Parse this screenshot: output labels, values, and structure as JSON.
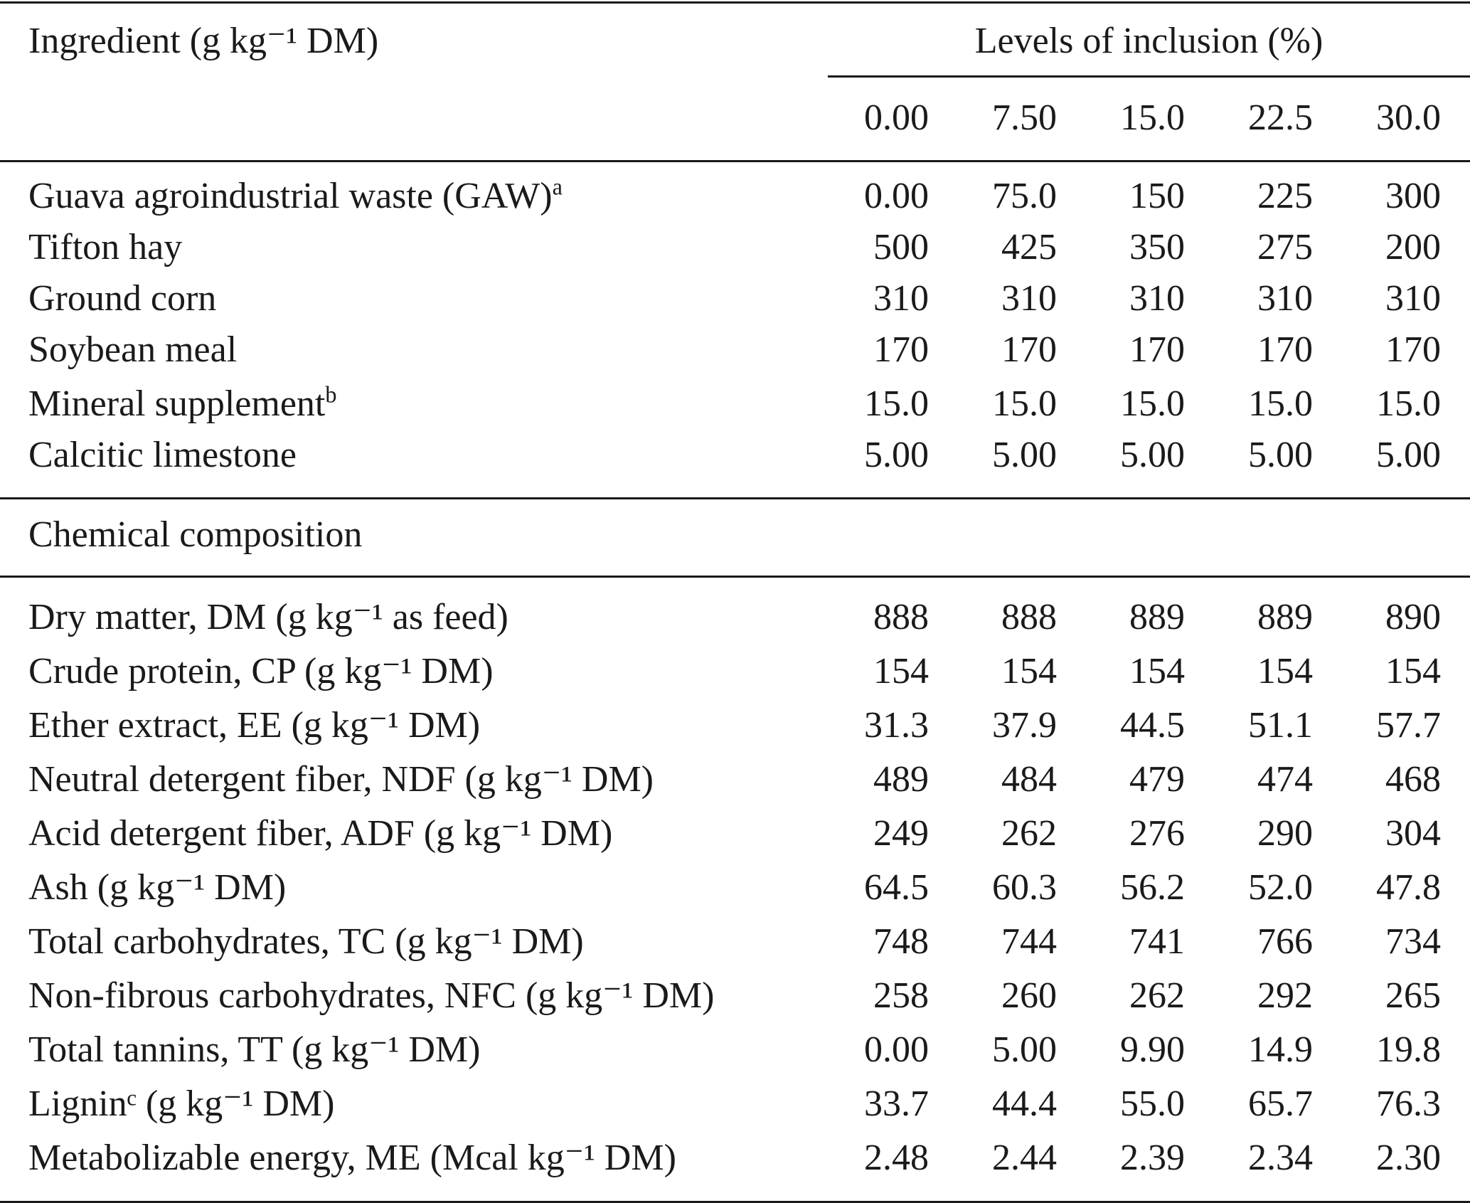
{
  "header": {
    "ingredient_label": "Ingredient (g kg⁻¹ DM)",
    "levels_label": "Levels of inclusion (%)",
    "levels": [
      "0.00",
      "7.50",
      "15.0",
      "22.5",
      "30.0"
    ]
  },
  "ingredients": [
    {
      "label": "Guava agroindustrial waste (GAW)",
      "sup": "a",
      "values": [
        "0.00",
        "75.0",
        "150",
        "225",
        "300"
      ]
    },
    {
      "label": "Tifton hay",
      "sup": "",
      "values": [
        "500",
        "425",
        "350",
        "275",
        "200"
      ]
    },
    {
      "label": "Ground corn",
      "sup": "",
      "values": [
        "310",
        "310",
        "310",
        "310",
        "310"
      ]
    },
    {
      "label": "Soybean meal",
      "sup": "",
      "values": [
        "170",
        "170",
        "170",
        "170",
        "170"
      ]
    },
    {
      "label": "Mineral supplement",
      "sup": "b",
      "values": [
        "15.0",
        "15.0",
        "15.0",
        "15.0",
        "15.0"
      ]
    },
    {
      "label": "Calcitic limestone",
      "sup": "",
      "values": [
        "5.00",
        "5.00",
        "5.00",
        "5.00",
        "5.00"
      ]
    }
  ],
  "section_title": "Chemical composition",
  "composition": [
    {
      "label": "Dry matter, DM (g kg⁻¹ as feed)",
      "values": [
        "888",
        "888",
        "889",
        "889",
        "890"
      ]
    },
    {
      "label": "Crude protein, CP (g kg⁻¹ DM)",
      "values": [
        "154",
        "154",
        "154",
        "154",
        "154"
      ]
    },
    {
      "label": "Ether extract, EE (g kg⁻¹ DM)",
      "values": [
        "31.3",
        "37.9",
        "44.5",
        "51.1",
        "57.7"
      ]
    },
    {
      "label": "Neutral detergent fiber, NDF (g kg⁻¹ DM)",
      "values": [
        "489",
        "484",
        "479",
        "474",
        "468"
      ]
    },
    {
      "label": "Acid detergent fiber, ADF (g kg⁻¹ DM)",
      "values": [
        "249",
        "262",
        "276",
        "290",
        "304"
      ]
    },
    {
      "label": "Ash (g kg⁻¹ DM)",
      "values": [
        "64.5",
        "60.3",
        "56.2",
        "52.0",
        "47.8"
      ]
    },
    {
      "label": "Total carbohydrates, TC (g kg⁻¹ DM)",
      "values": [
        "748",
        "744",
        "741",
        "766",
        "734"
      ]
    },
    {
      "label": "Non-fibrous carbohydrates, NFC (g kg⁻¹ DM)",
      "values": [
        "258",
        "260",
        "262",
        "292",
        "265"
      ]
    },
    {
      "label": "Total tannins, TT (g kg⁻¹ DM)",
      "values": [
        "0.00",
        "5.00",
        "9.90",
        "14.9",
        "19.8"
      ]
    },
    {
      "label": "Ligninᶜ (g kg⁻¹ DM)",
      "values": [
        "33.7",
        "44.4",
        "55.0",
        "65.7",
        "76.3"
      ]
    },
    {
      "label": "Metabolizable energy, ME (Mcal kg⁻¹ DM)",
      "values": [
        "2.48",
        "2.44",
        "2.39",
        "2.34",
        "2.30"
      ]
    }
  ]
}
